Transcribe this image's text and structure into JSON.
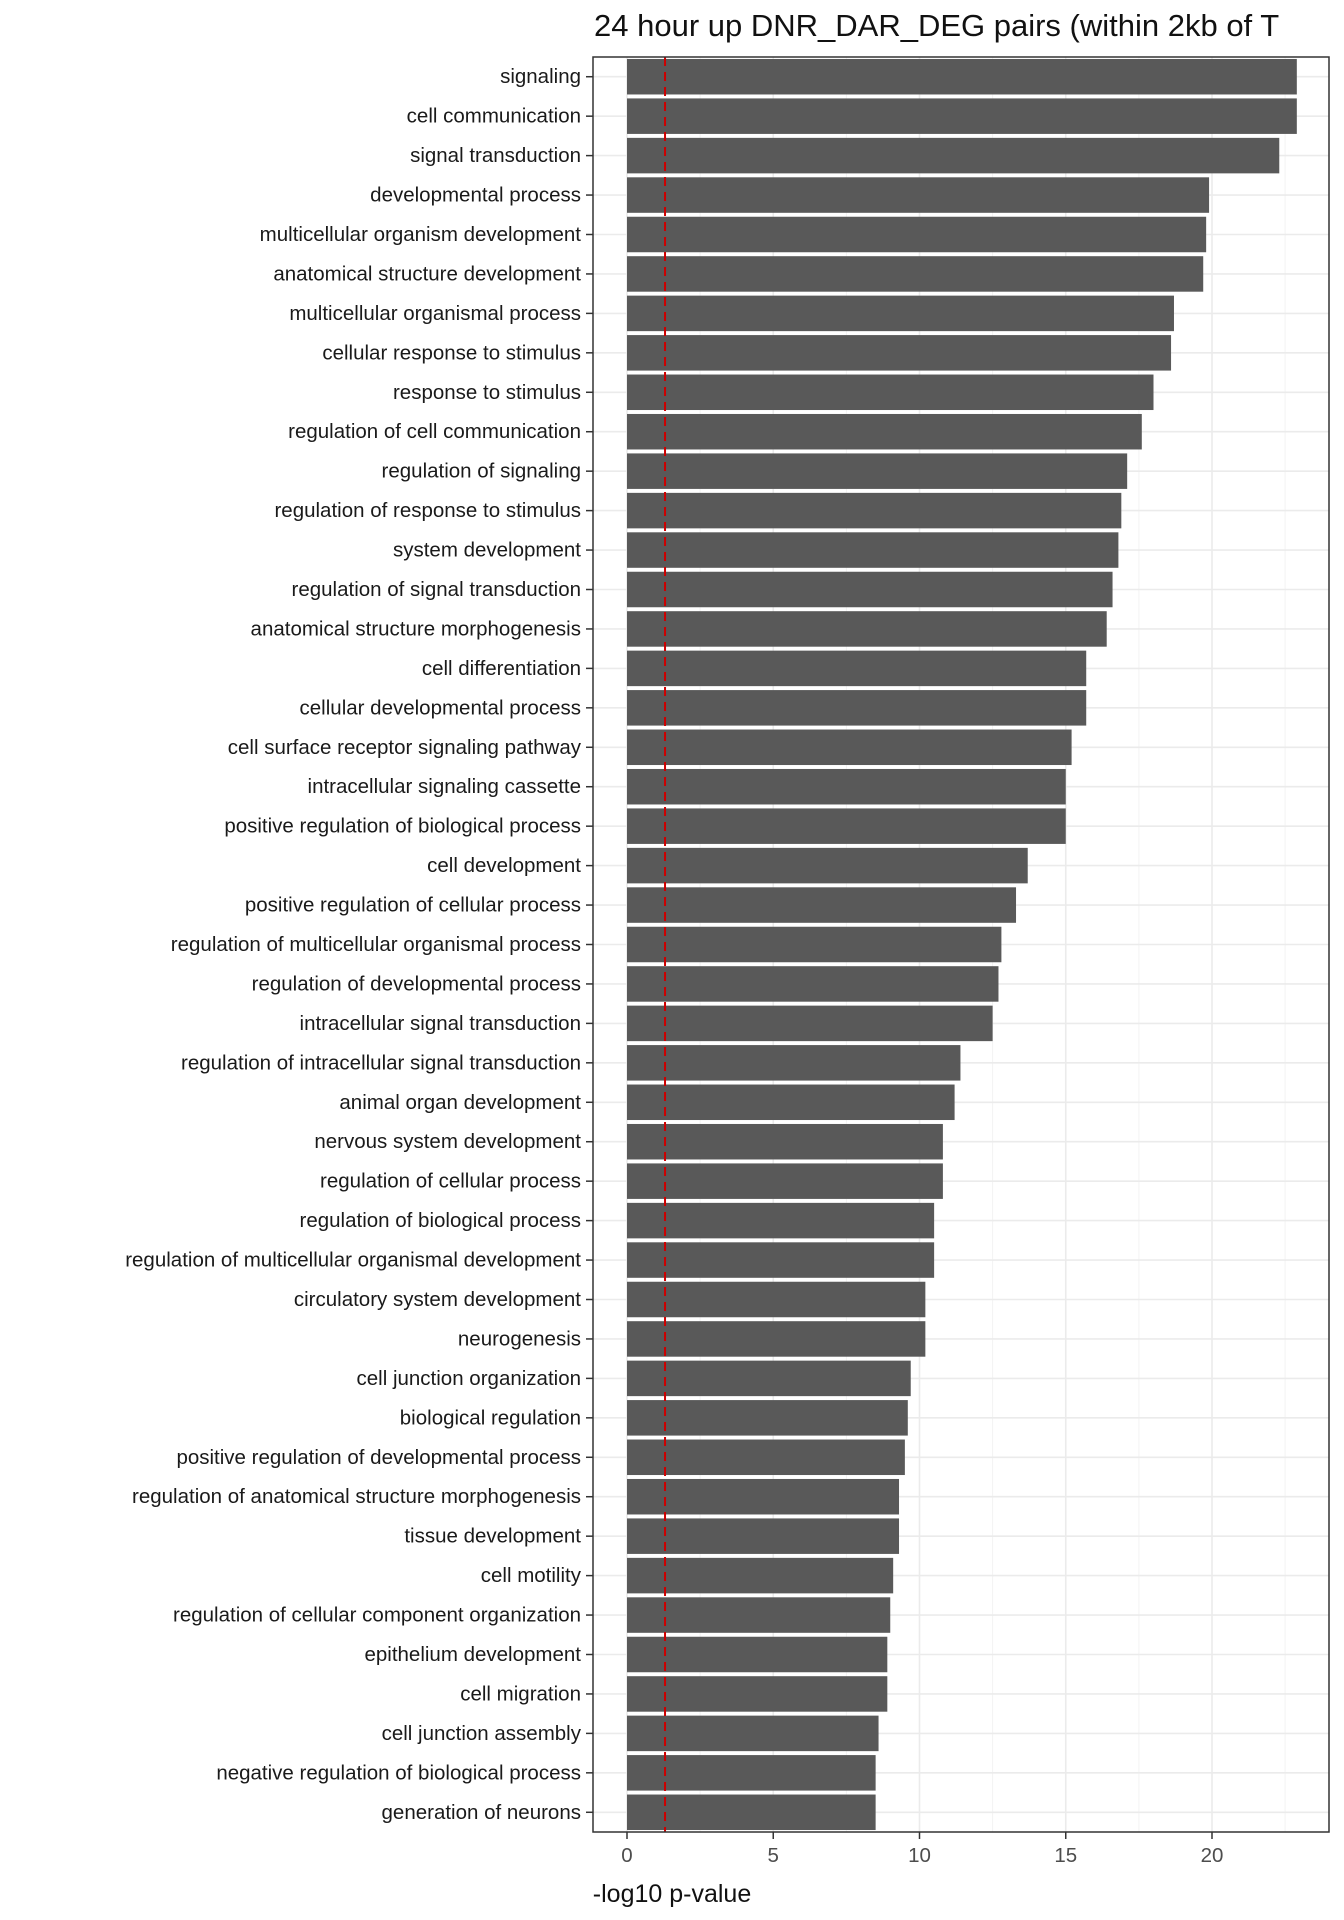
{
  "chart_data": {
    "type": "bar",
    "orientation": "horizontal",
    "title": "24 hour up DNR_DAR_DEG pairs (within 2kb of T",
    "xlabel": "-log10 p-value",
    "ylabel": "",
    "xlim": [
      -1.1,
      23.9
    ],
    "xticks": [
      0,
      5,
      10,
      15,
      20
    ],
    "threshold_line": {
      "value": 1.3,
      "style": "dashed",
      "color": "#cc0000"
    },
    "bar_color": "#595959",
    "grid": true,
    "legend": "none",
    "categories": [
      "signaling",
      "cell communication",
      "signal transduction",
      "developmental process",
      "multicellular organism development",
      "anatomical structure development",
      "multicellular organismal process",
      "cellular response to stimulus",
      "response to stimulus",
      "regulation of cell communication",
      "regulation of signaling",
      "regulation of response to stimulus",
      "system development",
      "regulation of signal transduction",
      "anatomical structure morphogenesis",
      "cell differentiation",
      "cellular developmental process",
      "cell surface receptor signaling pathway",
      "intracellular signaling cassette",
      "positive regulation of biological process",
      "cell development",
      "positive regulation of cellular process",
      "regulation of multicellular organismal process",
      "regulation of developmental process",
      "intracellular signal transduction",
      "regulation of intracellular signal transduction",
      "animal organ development",
      "nervous system development",
      "regulation of cellular process",
      "regulation of biological process",
      "regulation of multicellular organismal development",
      "circulatory system development",
      "neurogenesis",
      "cell junction organization",
      "biological regulation",
      "positive regulation of developmental process",
      "regulation of anatomical structure morphogenesis",
      "tissue development",
      "cell motility",
      "regulation of cellular component organization",
      "epithelium development",
      "cell migration",
      "cell junction assembly",
      "negative regulation of biological process",
      "generation of neurons"
    ],
    "values": [
      22.9,
      22.9,
      22.3,
      19.9,
      19.8,
      19.7,
      18.7,
      18.6,
      18.0,
      17.6,
      17.1,
      16.9,
      16.8,
      16.6,
      16.4,
      15.7,
      15.7,
      15.2,
      15.0,
      15.0,
      13.7,
      13.3,
      12.8,
      12.7,
      12.5,
      11.4,
      11.2,
      10.8,
      10.8,
      10.5,
      10.5,
      10.2,
      10.2,
      9.7,
      9.6,
      9.5,
      9.3,
      9.3,
      9.1,
      9.0,
      8.9,
      8.9,
      8.6,
      8.5,
      8.5
    ]
  }
}
